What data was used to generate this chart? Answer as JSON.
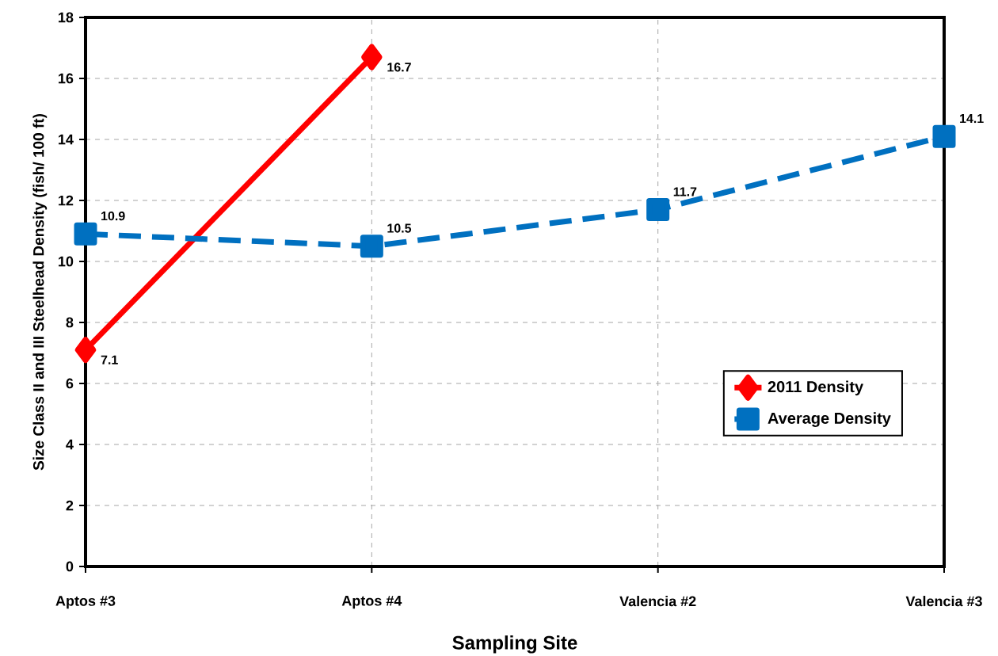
{
  "chart_data": {
    "type": "line",
    "xlabel": "Sampling Site",
    "ylabel": "Size Class II and III Steelhead Density (fish/ 100 ft)",
    "categories": [
      "Aptos #3",
      "Aptos #4",
      "Valencia #2",
      "Valencia #3"
    ],
    "series": [
      {
        "name": "2011 Density",
        "color": "#ff0000",
        "marker": "diamond",
        "line_style": "solid",
        "values": [
          7.1,
          16.7,
          null,
          null
        ]
      },
      {
        "name": "Average Density",
        "color": "#0070c0",
        "marker": "square",
        "line_style": "dashed",
        "values": [
          10.9,
          10.5,
          11.7,
          14.1
        ]
      }
    ],
    "ylim": [
      0,
      18
    ],
    "yticks": [
      0,
      2,
      4,
      6,
      8,
      10,
      12,
      14,
      16,
      18
    ],
    "grid": true,
    "legend": "bottom right",
    "data_labels": true
  }
}
